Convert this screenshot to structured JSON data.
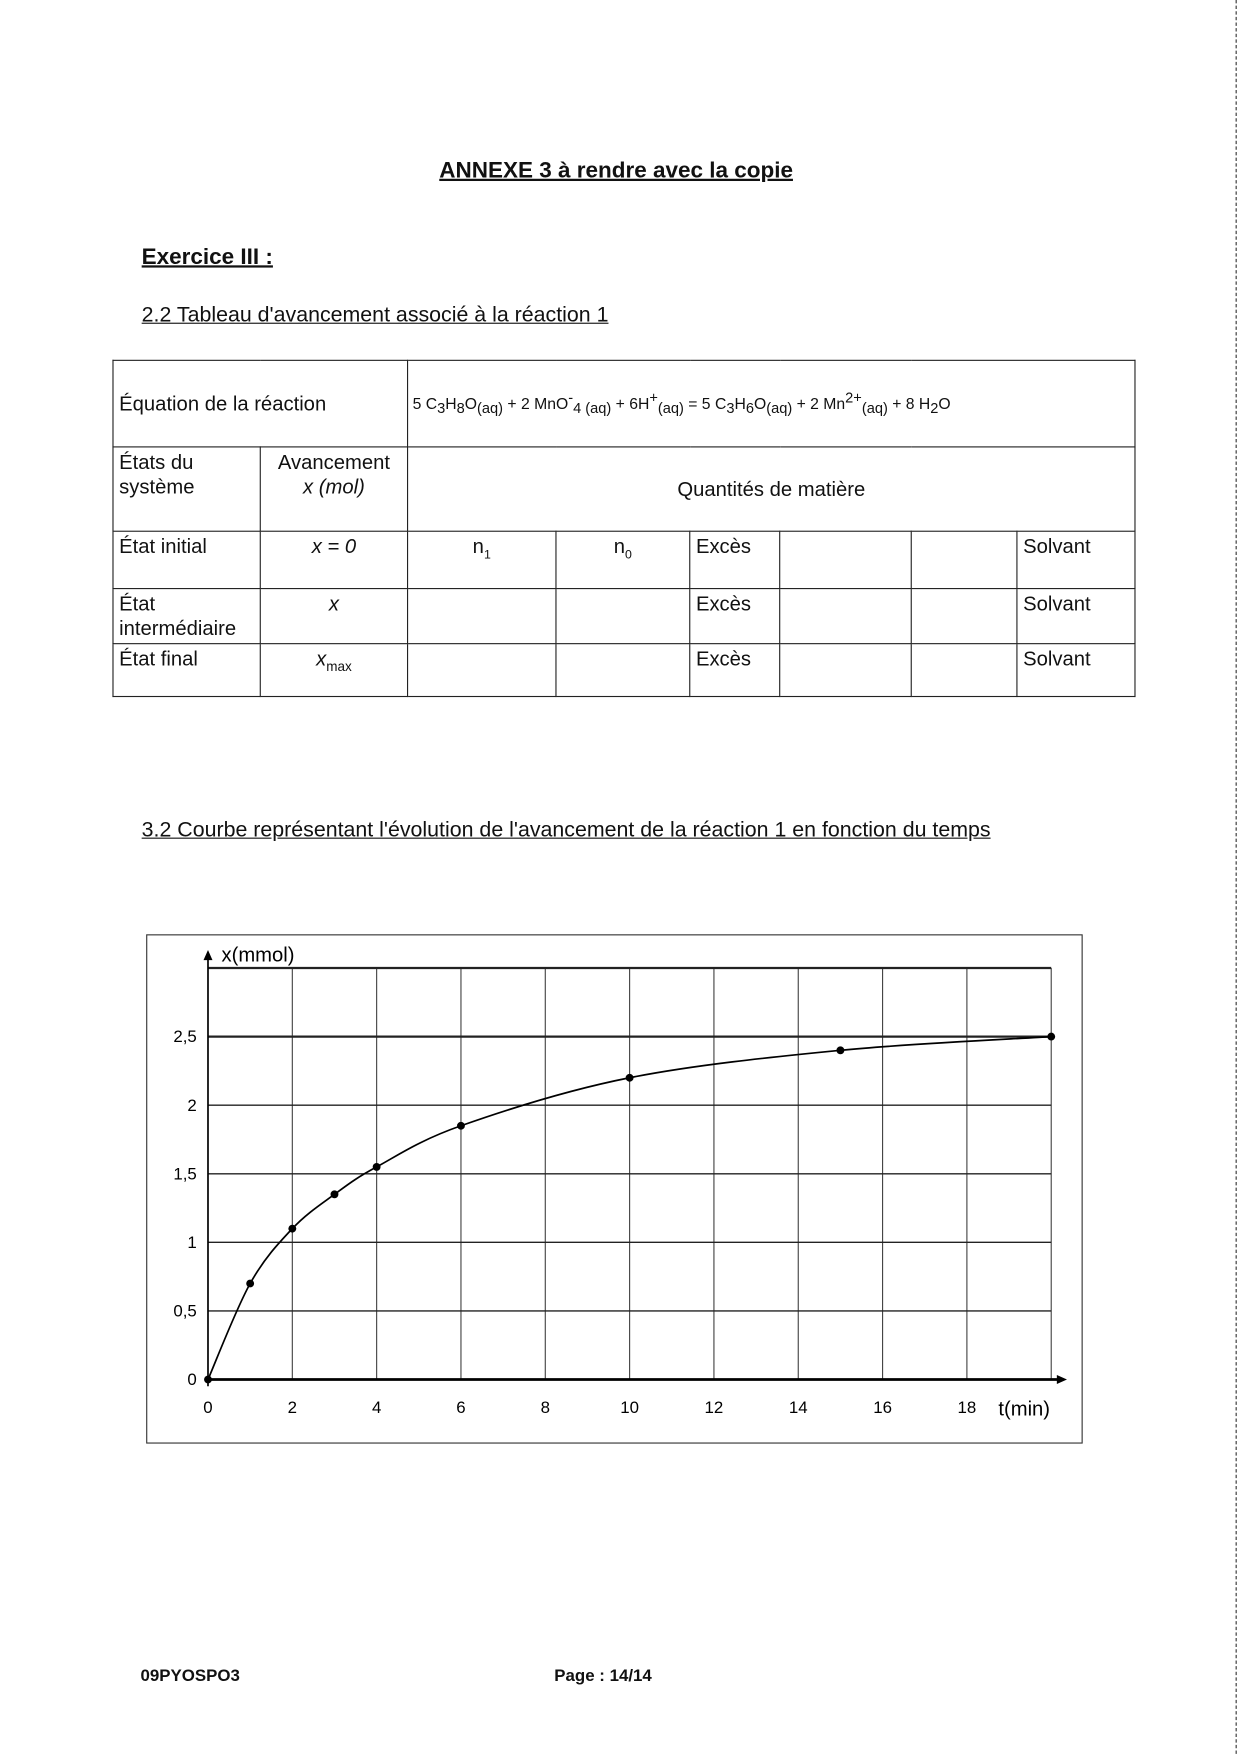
{
  "title": "ANNEXE 3 à rendre avec la copie",
  "exercise": "Exercice III :",
  "section_table": "2.2 Tableau d'avancement associé à la réaction 1",
  "table": {
    "equation_label": "Équation de la réaction",
    "equation": [
      {
        "t": "5 C"
      },
      {
        "sub": "3"
      },
      {
        "t": "H"
      },
      {
        "sub": "8"
      },
      {
        "t": "O"
      },
      {
        "sub": "(aq)"
      },
      {
        "t": " + 2 MnO"
      },
      {
        "sup": "-"
      },
      {
        "sub": "4 (aq)"
      },
      {
        "t": " + 6H"
      },
      {
        "sup": "+"
      },
      {
        "sub": "(aq)"
      },
      {
        "t": " = 5 C"
      },
      {
        "sub": "3"
      },
      {
        "t": "H"
      },
      {
        "sub": "6"
      },
      {
        "t": "O"
      },
      {
        "sub": "(aq)"
      },
      {
        "t": " + 2 Mn"
      },
      {
        "sup": "2+"
      },
      {
        "sub": "(aq)"
      },
      {
        "t": " + 8 H"
      },
      {
        "sub": "2"
      },
      {
        "t": "O"
      }
    ],
    "states_header": "États du système",
    "avancement_header": "Avancement",
    "avancement_unit": "x (mol)",
    "quantities_header": "Quantités de matière",
    "rows": [
      {
        "state": "État initial",
        "x": "x = 0",
        "c1": "n",
        "c1sub": "1",
        "c2": "n",
        "c2sub": "0",
        "c3": "Excès",
        "c6": "Solvant"
      },
      {
        "state": "État intermédiaire",
        "x": "x",
        "c1": "",
        "c2": "",
        "c3": "Excès",
        "c6": "Solvant"
      },
      {
        "state": "État final",
        "x": "x",
        "xsub": "max",
        "c1": "",
        "c2": "",
        "c3": "Excès",
        "c6": "Solvant"
      }
    ]
  },
  "section_chart": "3.2 Courbe représentant l'évolution de l'avancement de la réaction 1 en fonction du temps",
  "chart_data": {
    "type": "line",
    "title": "",
    "xlabel": "t(min)",
    "ylabel": "x(mmol)",
    "xlim": [
      0,
      20
    ],
    "ylim": [
      0,
      3
    ],
    "xticks": [
      "0",
      "2",
      "4",
      "6",
      "8",
      "10",
      "12",
      "14",
      "16",
      "18"
    ],
    "yticks": [
      "0",
      "0,5",
      "1",
      "1,5",
      "2",
      "2,5"
    ],
    "grid": true,
    "x": [
      0,
      1,
      2,
      3,
      4,
      6,
      10,
      15,
      20
    ],
    "y": [
      0,
      0.7,
      1.1,
      1.35,
      1.55,
      1.85,
      2.2,
      2.4,
      2.5
    ]
  },
  "footer": {
    "code": "09PYOSPO3",
    "page": "Page : 14/14"
  }
}
